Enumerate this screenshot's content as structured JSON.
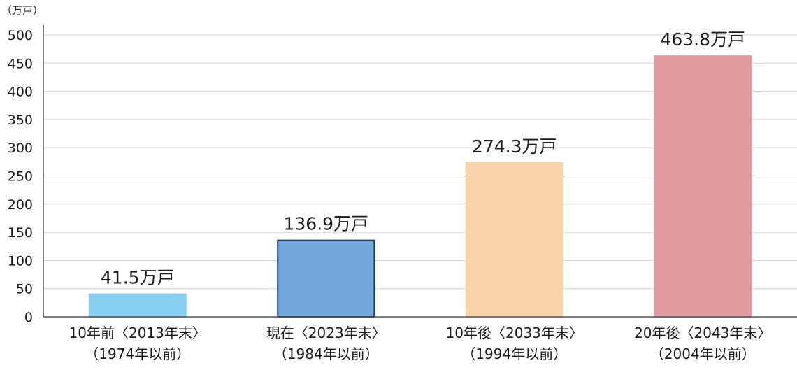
{
  "chart_data": {
    "type": "bar",
    "unit_label": "（万戸）",
    "categories": [
      {
        "line1": "10年前〈2013年末〉",
        "line2": "（1974年以前）"
      },
      {
        "line1": "現在〈2023年末〉",
        "line2": "（1984年以前）"
      },
      {
        "line1": "10年後〈2033年末〉",
        "line2": "（1994年以前）"
      },
      {
        "line1": "20年後〈2043年末〉",
        "line2": "（2004年以前）"
      }
    ],
    "values": [
      41.5,
      136.9,
      274.3,
      463.8
    ],
    "data_labels": [
      "41.5万戸",
      "136.9万戸",
      "274.3万戸",
      "463.8万戸"
    ],
    "bar_colors": [
      "#87d0f0",
      "#73a6da",
      "#f9d3aa",
      "#e29aa0"
    ],
    "bar_outline_colors": [
      "#87d0f0",
      "#1a3c78",
      "#f9d3aa",
      "#e29aa0"
    ],
    "ylim": [
      0,
      500
    ],
    "yticks": [
      0,
      50,
      100,
      150,
      200,
      250,
      300,
      350,
      400,
      450,
      500
    ],
    "grid": true,
    "grid_color": "#cfcfcf",
    "axis_color": "#555555"
  }
}
